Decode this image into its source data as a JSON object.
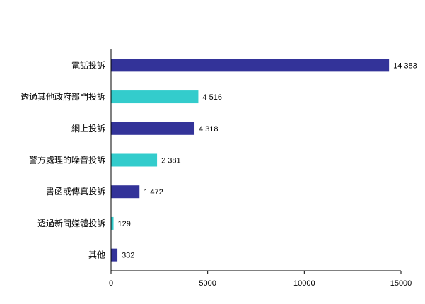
{
  "chart_data": {
    "type": "bar",
    "orientation": "horizontal",
    "title": "",
    "xlabel": "",
    "ylabel": "",
    "categories": [
      "電話投訴",
      "透過其他政府部門投訴",
      "網上投訴",
      "警方處理的噪音投訴",
      "書函或傳真投訴",
      "透過新聞媒體投訴",
      "其他"
    ],
    "values": [
      14383,
      4516,
      4318,
      2381,
      1472,
      129,
      332
    ],
    "value_labels": [
      "14 383",
      "4 516",
      "4 318",
      "2 381",
      "1 472",
      "129",
      "332"
    ],
    "bar_colors": [
      "#333399",
      "#33CCCC",
      "#333399",
      "#33CCCC",
      "#333399",
      "#33CCCC",
      "#333399"
    ],
    "xlim": [
      0,
      15000
    ],
    "xticks": [
      0,
      5000,
      10000,
      15000
    ],
    "xtick_labels": [
      "0",
      "5000",
      "10000",
      "15000"
    ],
    "grid": false,
    "legend": "none"
  }
}
